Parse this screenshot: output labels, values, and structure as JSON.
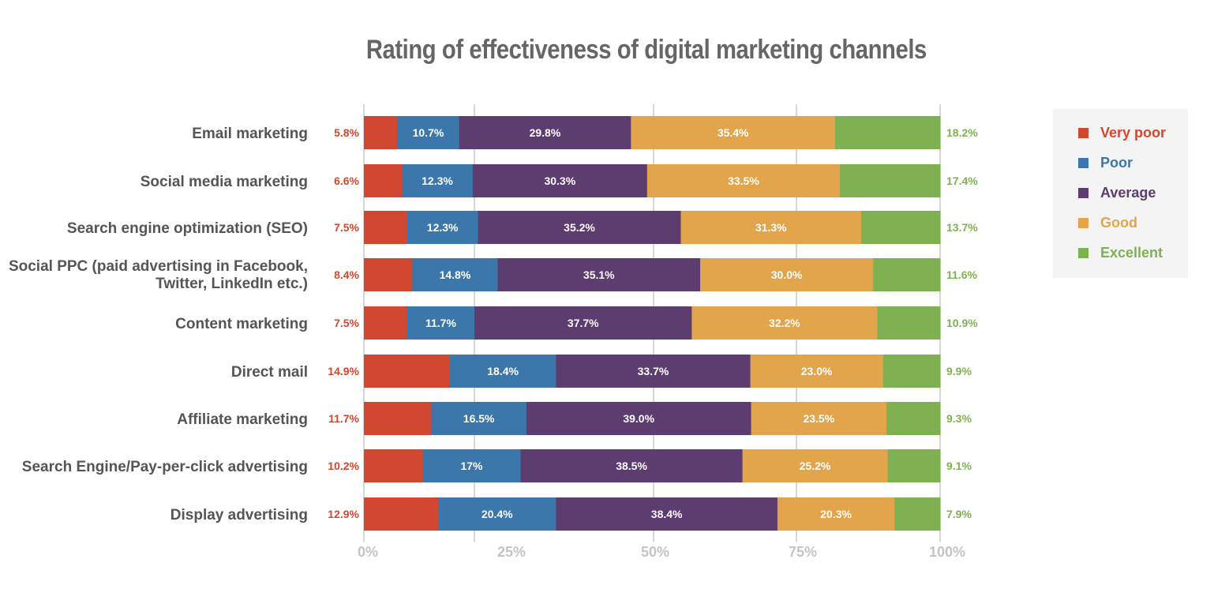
{
  "chart_data": {
    "type": "bar",
    "orientation": "horizontal",
    "stacked": true,
    "title": "Rating of effectiveness of digital marketing channels",
    "categories": [
      [
        "Email marketing"
      ],
      [
        "Social media marketing"
      ],
      [
        "Search engine optimization (SEO)"
      ],
      [
        "Social PPC (paid advertising in Facebook,",
        "Twitter, LinkedIn etc.)"
      ],
      [
        "Content marketing"
      ],
      [
        "Direct mail"
      ],
      [
        "Affiliate marketing"
      ],
      [
        "Search Engine/Pay-per-click advertising"
      ],
      [
        "Display advertising"
      ]
    ],
    "series": [
      {
        "name": "Very poor",
        "color": "#d2472f",
        "values": [
          5.8,
          6.6,
          7.5,
          8.4,
          7.5,
          14.9,
          11.7,
          10.2,
          12.9
        ],
        "labels": [
          "5.8%",
          "6.6%",
          "7.5%",
          "8.4%",
          "7.5%",
          "14.9%",
          "11.7%",
          "10.2%",
          "12.9%"
        ]
      },
      {
        "name": "Poor",
        "color": "#3b77aa",
        "values": [
          10.7,
          12.3,
          12.3,
          14.8,
          11.7,
          18.4,
          16.5,
          17,
          20.4
        ],
        "labels": [
          "10.7%",
          "12.3%",
          "12.3%",
          "14.8%",
          "11.7%",
          "18.4%",
          "16.5%",
          "17%",
          "20.4%"
        ]
      },
      {
        "name": "Average",
        "color": "#5d3c70",
        "values": [
          29.8,
          30.3,
          35.2,
          35.1,
          37.7,
          33.7,
          39.0,
          38.5,
          38.4
        ],
        "labels": [
          "29.8%",
          "30.3%",
          "35.2%",
          "35.1%",
          "37.7%",
          "33.7%",
          "39.0%",
          "38.5%",
          "38.4%"
        ]
      },
      {
        "name": "Good",
        "color": "#e2a54b",
        "values": [
          35.4,
          33.5,
          31.3,
          30.0,
          32.2,
          23.0,
          23.5,
          25.2,
          20.3
        ],
        "labels": [
          "35.4%",
          "33.5%",
          "31.3%",
          "30.0%",
          "32.2%",
          "23.0%",
          "23.5%",
          "25.2%",
          "20.3%"
        ]
      },
      {
        "name": "Excellent",
        "color": "#7fb052",
        "values": [
          18.2,
          17.4,
          13.7,
          11.6,
          10.9,
          9.9,
          9.3,
          9.1,
          7.9
        ],
        "labels": [
          "18.2%",
          "17.4%",
          "13.7%",
          "11.6%",
          "10.9%",
          "9.9%",
          "9.3%",
          "9.1%",
          "7.9%"
        ]
      }
    ],
    "xlim": [
      0,
      100
    ],
    "xticks": [
      "0%",
      "25%",
      "50%",
      "75%",
      "100%"
    ],
    "grid": true,
    "legend_position": "right"
  }
}
